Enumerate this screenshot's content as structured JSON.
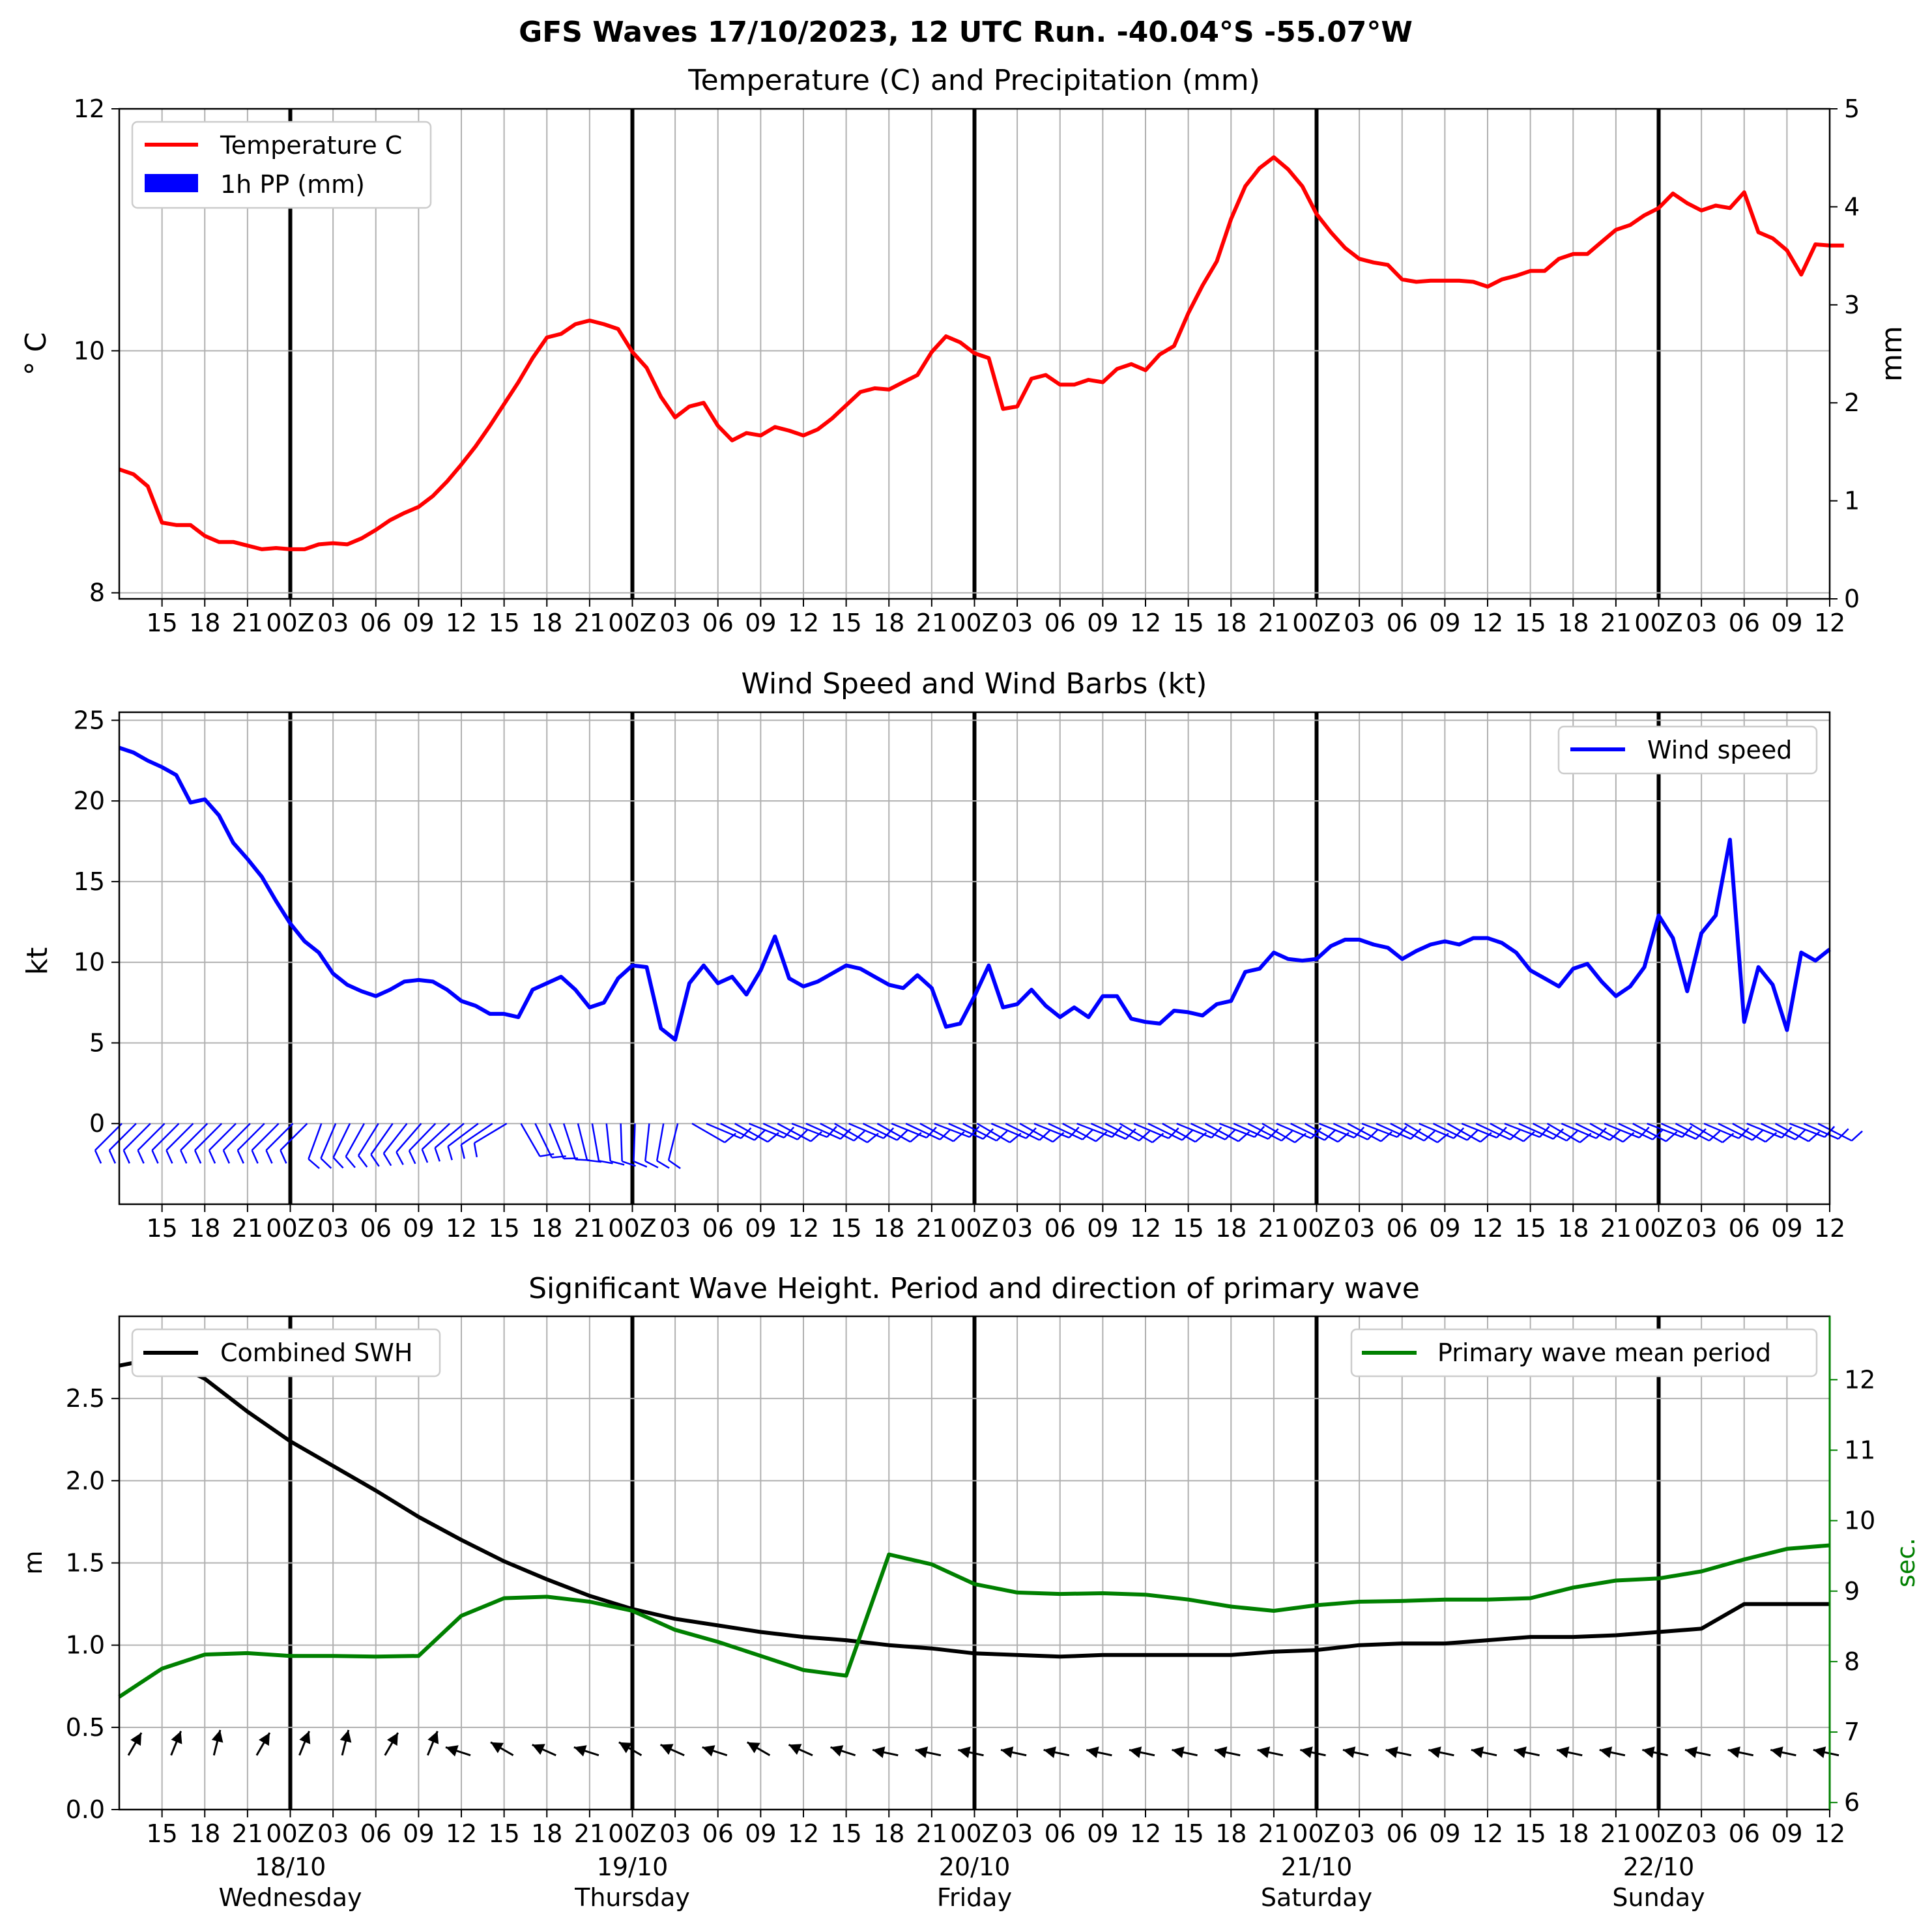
{
  "title": "GFS Waves 17/10/2023, 12 UTC Run. -40.04°S -55.07°W",
  "colors": {
    "temperature": "#ff0000",
    "precip": "#0000ff",
    "wind": "#0000ff",
    "swh": "#000000",
    "period": "#008000",
    "grid": "#b0b0b0"
  },
  "time_axis": {
    "start_hour": 12,
    "end_hour": 132,
    "step_hours": 3,
    "tick_labels": [
      "15",
      "18",
      "21",
      "00Z",
      "03",
      "06",
      "09",
      "12",
      "15",
      "18",
      "21",
      "00Z",
      "03",
      "06",
      "09",
      "12",
      "15",
      "18",
      "21",
      "00Z",
      "03",
      "06",
      "09",
      "12",
      "15",
      "18",
      "21",
      "00Z",
      "03",
      "06",
      "09",
      "12",
      "15",
      "18",
      "21",
      "00Z",
      "03",
      "06",
      "09",
      "12"
    ],
    "days": [
      {
        "date": "18/10",
        "weekday": "Wednesday"
      },
      {
        "date": "19/10",
        "weekday": "Thursday"
      },
      {
        "date": "20/10",
        "weekday": "Friday"
      },
      {
        "date": "21/10",
        "weekday": "Saturday"
      },
      {
        "date": "22/10",
        "weekday": "Sunday"
      }
    ]
  },
  "chart_data": [
    {
      "type": "line",
      "title": "Temperature (C) and Precipitation (mm)",
      "ylabel": "$^\\circ$C",
      "ylabel_display": "° C",
      "y2label": "mm",
      "ylim": [
        7.95,
        12
      ],
      "y2lim": [
        0,
        5
      ],
      "yticks": [
        "8",
        "10",
        "12"
      ],
      "y2ticks": [
        "0",
        "1",
        "2",
        "3",
        "4",
        "5"
      ],
      "legend": {
        "position": "top-left",
        "entries": [
          "Temperature C",
          "1h PP (mm)"
        ]
      },
      "series": [
        {
          "name": "Temperature C",
          "interval_hours": 1,
          "values": [
            9.02,
            8.98,
            8.88,
            8.58,
            8.56,
            8.56,
            8.47,
            8.42,
            8.42,
            8.39,
            8.36,
            8.37,
            8.36,
            8.36,
            8.4,
            8.41,
            8.4,
            8.45,
            8.52,
            8.6,
            8.66,
            8.71,
            8.8,
            8.92,
            9.06,
            9.21,
            9.38,
            9.56,
            9.74,
            9.94,
            10.11,
            10.14,
            10.22,
            10.25,
            10.22,
            10.18,
            9.99,
            9.86,
            9.62,
            9.45,
            9.54,
            9.57,
            9.38,
            9.26,
            9.32,
            9.3,
            9.37,
            9.34,
            9.3,
            9.35,
            9.44,
            9.55,
            9.66,
            9.69,
            9.68,
            9.74,
            9.8,
            9.99,
            10.12,
            10.07,
            9.98,
            9.94,
            9.52,
            9.54,
            9.77,
            9.8,
            9.72,
            9.72,
            9.76,
            9.74,
            9.85,
            9.89,
            9.84,
            9.97,
            10.04,
            10.31,
            10.54,
            10.74,
            11.09,
            11.36,
            11.51,
            11.6,
            11.5,
            11.36,
            11.13,
            10.98,
            10.85,
            10.76,
            10.73,
            10.71,
            10.59,
            10.57,
            10.58,
            10.58,
            10.58,
            10.57,
            10.53,
            10.59,
            10.62,
            10.66,
            10.66,
            10.76,
            10.8,
            10.8,
            10.9,
            11.0,
            11.04,
            11.12,
            11.18,
            11.3,
            11.22,
            11.16,
            11.2,
            11.18,
            11.31,
            10.98,
            10.93,
            10.83,
            10.63,
            10.88,
            10.87,
            10.87
          ]
        },
        {
          "name": "1h PP (mm)",
          "values": []
        }
      ]
    },
    {
      "type": "line",
      "title": "Wind Speed and Wind Barbs (kt)",
      "ylabel": "kt",
      "ylim": [
        -5,
        25.5
      ],
      "yticks": [
        "0",
        "5",
        "10",
        "15",
        "20",
        "25"
      ],
      "legend": {
        "position": "top-right",
        "entries": [
          "Wind speed"
        ]
      },
      "series": [
        {
          "name": "Wind speed",
          "interval_hours": 1,
          "values": [
            23.3,
            23.0,
            22.5,
            22.1,
            21.6,
            19.9,
            20.1,
            19.1,
            17.4,
            16.4,
            15.3,
            13.8,
            12.4,
            11.3,
            10.6,
            9.3,
            8.6,
            8.2,
            7.9,
            8.3,
            8.8,
            8.9,
            8.8,
            8.3,
            7.6,
            7.3,
            6.8,
            6.8,
            6.6,
            8.3,
            8.7,
            9.1,
            8.3,
            7.2,
            7.5,
            9.0,
            9.8,
            9.7,
            5.9,
            5.2,
            8.7,
            9.8,
            8.7,
            9.1,
            8.0,
            9.5,
            11.6,
            9.0,
            8.5,
            8.8,
            9.3,
            9.8,
            9.6,
            9.1,
            8.6,
            8.4,
            9.2,
            8.4,
            6.0,
            6.2,
            7.9,
            9.8,
            7.2,
            7.4,
            8.3,
            7.3,
            6.6,
            7.2,
            6.6,
            7.9,
            7.9,
            6.5,
            6.3,
            6.2,
            7.0,
            6.9,
            6.7,
            7.4,
            7.6,
            9.4,
            9.6,
            10.6,
            10.2,
            10.1,
            10.2,
            11.0,
            11.4,
            11.4,
            11.1,
            10.9,
            10.2,
            10.7,
            11.1,
            11.3,
            11.1,
            11.5,
            11.5,
            11.2,
            10.6,
            9.5,
            9.0,
            8.5,
            9.6,
            9.9,
            8.8,
            7.9,
            8.5,
            9.7,
            12.9,
            11.5,
            8.2,
            11.8,
            12.9,
            17.6,
            6.3,
            9.7,
            8.6,
            5.8,
            10.6,
            10.1,
            10.8
          ]
        }
      ]
    },
    {
      "type": "line",
      "title": "Significant Wave Height. Period and direction of primary wave",
      "ylabel": "m",
      "y2label": "sec.",
      "ylim": [
        0,
        3.0
      ],
      "y2lim": [
        5.9,
        12.9
      ],
      "yticks": [
        "0.0",
        "0.5",
        "1.0",
        "1.5",
        "2.0",
        "2.5"
      ],
      "y2ticks": [
        "6",
        "7",
        "8",
        "9",
        "10",
        "11",
        "12"
      ],
      "legend": [
        {
          "position": "top-left",
          "entries": [
            "Combined SWH"
          ]
        },
        {
          "position": "top-right",
          "entries": [
            "Primary wave mean period"
          ]
        }
      ],
      "series": [
        {
          "name": "Combined SWH",
          "interval_hours": 3,
          "values": [
            2.7,
            2.75,
            2.62,
            2.42,
            2.24,
            2.09,
            1.94,
            1.78,
            1.64,
            1.51,
            1.4,
            1.3,
            1.22,
            1.16,
            1.12,
            1.08,
            1.05,
            1.03,
            1.0,
            0.98,
            0.95,
            0.94,
            0.93,
            0.94,
            0.94,
            0.94,
            0.94,
            0.96,
            0.97,
            1.0,
            1.01,
            1.01,
            1.03,
            1.05,
            1.05,
            1.06,
            1.08,
            1.1,
            1.25,
            1.25,
            1.25
          ]
        },
        {
          "name": "Primary wave mean period",
          "interval_hours": 3,
          "values": [
            7.5,
            7.9,
            8.1,
            8.12,
            8.08,
            8.08,
            8.07,
            8.08,
            8.65,
            8.9,
            8.92,
            8.85,
            8.72,
            8.45,
            8.28,
            8.08,
            7.88,
            7.8,
            9.52,
            9.38,
            9.1,
            8.98,
            8.96,
            8.97,
            8.95,
            8.88,
            8.78,
            8.72,
            8.8,
            8.85,
            8.86,
            8.88,
            8.88,
            8.9,
            9.05,
            9.15,
            9.18,
            9.28,
            9.45,
            9.6,
            9.65
          ]
        }
      ]
    }
  ]
}
